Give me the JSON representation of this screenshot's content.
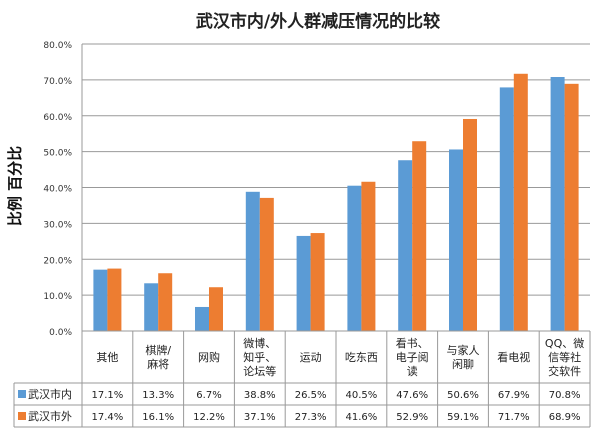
{
  "chart_data": {
    "type": "bar",
    "title": "武汉市内/外人群减压情况的比较",
    "ylabel": "比例 百分比",
    "xlabel": "",
    "ylim": [
      0,
      80
    ],
    "yticks": [
      "0.0%",
      "10.0%",
      "20.0%",
      "30.0%",
      "40.0%",
      "50.0%",
      "60.0%",
      "70.0%",
      "80.0%"
    ],
    "grid": true,
    "legend": "data-table-left",
    "categories": [
      [
        "其他"
      ],
      [
        "棋牌/",
        "麻将"
      ],
      [
        "网购"
      ],
      [
        "微博、",
        "知乎、",
        "论坛等"
      ],
      [
        "运动"
      ],
      [
        "吃东西"
      ],
      [
        "看书、",
        "电子阅",
        "读"
      ],
      [
        "与家人",
        "闲聊"
      ],
      [
        "看电视"
      ],
      [
        "QQ、微",
        "信等社",
        "交软件"
      ]
    ],
    "series": [
      {
        "name": "武汉市内",
        "color": "#5B9BD5",
        "values": [
          17.1,
          13.3,
          6.7,
          38.8,
          26.5,
          40.5,
          47.6,
          50.6,
          67.9,
          70.8
        ],
        "labels": [
          "17.1%",
          "13.3%",
          "6.7%",
          "38.8%",
          "26.5%",
          "40.5%",
          "47.6%",
          "50.6%",
          "67.9%",
          "70.8%"
        ]
      },
      {
        "name": "武汉市外",
        "color": "#ED7D31",
        "values": [
          17.4,
          16.1,
          12.2,
          37.1,
          27.3,
          41.6,
          52.9,
          59.1,
          71.7,
          68.9
        ],
        "labels": [
          "17.4%",
          "16.1%",
          "12.2%",
          "37.1%",
          "27.3%",
          "41.6%",
          "52.9%",
          "59.1%",
          "71.7%",
          "68.9%"
        ]
      }
    ]
  }
}
